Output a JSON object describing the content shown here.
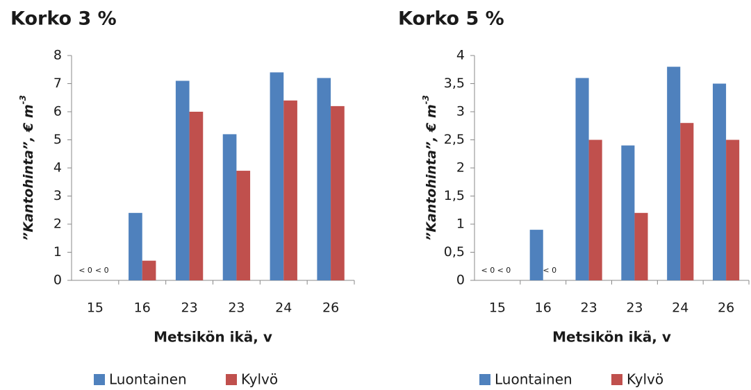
{
  "chart_data": [
    {
      "type": "bar",
      "title": "Korko 3 %",
      "xlabel": "Metsikön ikä, v",
      "ylabel": "”Kantohinta”, € m",
      "ylabel_sup": "-3",
      "categories": [
        "15",
        "16",
        "23",
        "23",
        "24",
        "26"
      ],
      "series": [
        {
          "name": "Luontainen",
          "color": "#4f81bd",
          "values": [
            null,
            2.4,
            7.1,
            5.2,
            7.4,
            7.2
          ],
          "value_labels": [
            "< 0",
            null,
            null,
            null,
            null,
            null
          ]
        },
        {
          "name": "Kylvö",
          "color": "#c0504d",
          "values": [
            null,
            0.7,
            6.0,
            3.9,
            6.4,
            6.2
          ],
          "value_labels": [
            "< 0",
            null,
            null,
            null,
            null,
            null
          ]
        }
      ],
      "ylim": [
        0,
        8
      ],
      "yticks": [
        0,
        1,
        2,
        3,
        4,
        5,
        6,
        7,
        8
      ],
      "legend": "bottom"
    },
    {
      "type": "bar",
      "title": "Korko 5 %",
      "xlabel": "Metsikön ikä, v",
      "ylabel": "”Kantohinta”, € m",
      "ylabel_sup": "-3",
      "categories": [
        "15",
        "16",
        "23",
        "23",
        "24",
        "26"
      ],
      "series": [
        {
          "name": "Luontainen",
          "color": "#4f81bd",
          "values": [
            null,
            0.9,
            3.6,
            2.4,
            3.8,
            3.5
          ],
          "value_labels": [
            "< 0",
            null,
            null,
            null,
            null,
            null
          ]
        },
        {
          "name": "Kylvö",
          "color": "#c0504d",
          "values": [
            null,
            null,
            2.5,
            1.2,
            2.8,
            2.5
          ],
          "value_labels": [
            "< 0",
            "< 0",
            null,
            null,
            null,
            null
          ]
        }
      ],
      "ylim": [
        0,
        4
      ],
      "yticks": [
        0,
        {
          "value": 0.5,
          "label": "0,5"
        },
        1,
        {
          "value": 1.5,
          "label": "1,5"
        },
        2,
        {
          "value": 2.5,
          "label": "2,5"
        },
        3,
        {
          "value": 3.5,
          "label": "3,5"
        },
        4
      ],
      "legend": "bottom"
    }
  ]
}
